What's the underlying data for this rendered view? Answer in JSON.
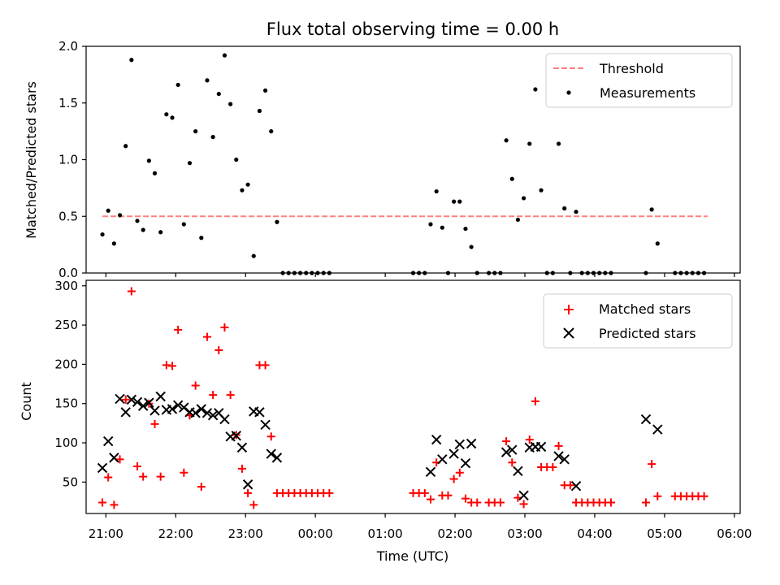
{
  "chart_data": [
    {
      "type": "scatter",
      "title": "Flux total observing time = 0.00 h",
      "ylabel": "Matched/Predicted stars",
      "xlabel": "",
      "xlim": [
        "20:43",
        "06:05"
      ],
      "ylim": [
        0,
        2.0
      ],
      "x_ticks": [
        "21:00",
        "22:00",
        "23:00",
        "00:00",
        "01:00",
        "02:00",
        "03:00",
        "04:00",
        "05:00",
        "06:00"
      ],
      "y_ticks": [
        "0.0",
        "0.5",
        "1.0",
        "1.5",
        "2.0"
      ],
      "legend_position": "top-right",
      "series": [
        {
          "name": "Threshold",
          "style": "dashed-line",
          "color": "#ff7f7f",
          "points": [
            [
              "20:57",
              0.5
            ],
            [
              "05:37",
              0.5
            ]
          ]
        },
        {
          "name": "Measurements",
          "style": "dot",
          "color": "#000000",
          "points": [
            [
              "20:57",
              0.34
            ],
            [
              "21:02",
              0.55
            ],
            [
              "21:07",
              0.26
            ],
            [
              "21:12",
              0.51
            ],
            [
              "21:17",
              1.12
            ],
            [
              "21:22",
              1.88
            ],
            [
              "21:27",
              0.46
            ],
            [
              "21:32",
              0.38
            ],
            [
              "21:37",
              0.99
            ],
            [
              "21:42",
              0.88
            ],
            [
              "21:47",
              0.36
            ],
            [
              "21:52",
              1.4
            ],
            [
              "21:57",
              1.37
            ],
            [
              "22:02",
              1.66
            ],
            [
              "22:07",
              0.43
            ],
            [
              "22:12",
              0.97
            ],
            [
              "22:17",
              1.25
            ],
            [
              "22:22",
              0.31
            ],
            [
              "22:27",
              1.7
            ],
            [
              "22:32",
              1.2
            ],
            [
              "22:37",
              1.58
            ],
            [
              "22:42",
              1.92
            ],
            [
              "22:47",
              1.49
            ],
            [
              "22:52",
              1.0
            ],
            [
              "22:57",
              0.73
            ],
            [
              "23:02",
              0.78
            ],
            [
              "23:07",
              0.15
            ],
            [
              "23:12",
              1.43
            ],
            [
              "23:17",
              1.61
            ],
            [
              "23:22",
              1.25
            ],
            [
              "23:27",
              0.45
            ],
            [
              "23:32",
              0.0
            ],
            [
              "23:37",
              0.0
            ],
            [
              "23:42",
              0.0
            ],
            [
              "23:47",
              0.0
            ],
            [
              "23:52",
              0.0
            ],
            [
              "23:57",
              0.0
            ],
            [
              "00:02",
              0.0
            ],
            [
              "00:07",
              0.0
            ],
            [
              "00:12",
              0.0
            ],
            [
              "01:24",
              0.0
            ],
            [
              "01:29",
              0.0
            ],
            [
              "01:34",
              0.0
            ],
            [
              "01:39",
              0.43
            ],
            [
              "01:44",
              0.72
            ],
            [
              "01:49",
              0.4
            ],
            [
              "01:54",
              0.0
            ],
            [
              "01:59",
              0.63
            ],
            [
              "02:04",
              0.63
            ],
            [
              "02:09",
              0.39
            ],
            [
              "02:14",
              0.23
            ],
            [
              "02:19",
              0.0
            ],
            [
              "02:29",
              0.0
            ],
            [
              "02:34",
              0.0
            ],
            [
              "02:39",
              0.0
            ],
            [
              "02:44",
              1.17
            ],
            [
              "02:49",
              0.83
            ],
            [
              "02:54",
              0.47
            ],
            [
              "02:59",
              0.66
            ],
            [
              "03:04",
              1.14
            ],
            [
              "03:09",
              1.62
            ],
            [
              "03:14",
              0.73
            ],
            [
              "03:19",
              0.0
            ],
            [
              "03:24",
              0.0
            ],
            [
              "03:29",
              1.14
            ],
            [
              "03:34",
              0.57
            ],
            [
              "03:39",
              0.0
            ],
            [
              "03:44",
              0.54
            ],
            [
              "03:49",
              0.0
            ],
            [
              "03:54",
              0.0
            ],
            [
              "03:59",
              0.0
            ],
            [
              "04:04",
              0.0
            ],
            [
              "04:09",
              0.0
            ],
            [
              "04:14",
              0.0
            ],
            [
              "04:44",
              0.0
            ],
            [
              "04:49",
              0.56
            ],
            [
              "04:54",
              0.26
            ],
            [
              "05:09",
              0.0
            ],
            [
              "05:14",
              0.0
            ],
            [
              "05:19",
              0.0
            ],
            [
              "05:24",
              0.0
            ],
            [
              "05:29",
              0.0
            ],
            [
              "05:34",
              0.0
            ]
          ]
        }
      ]
    },
    {
      "type": "scatter",
      "title": "",
      "ylabel": "Count",
      "xlabel": "Time (UTC)",
      "xlim": [
        "20:43",
        "06:05"
      ],
      "ylim": [
        10,
        307
      ],
      "x_ticks": [
        "21:00",
        "22:00",
        "23:00",
        "00:00",
        "01:00",
        "02:00",
        "03:00",
        "04:00",
        "05:00",
        "06:00"
      ],
      "y_ticks": [
        "50",
        "100",
        "150",
        "200",
        "250",
        "300"
      ],
      "legend_position": "top-right",
      "series": [
        {
          "name": "Matched stars",
          "style": "plus",
          "color": "#ff0000",
          "points": [
            [
              "20:57",
              24
            ],
            [
              "21:02",
              56
            ],
            [
              "21:07",
              21
            ],
            [
              "21:12",
              79
            ],
            [
              "21:17",
              155
            ],
            [
              "21:22",
              293
            ],
            [
              "21:27",
              70
            ],
            [
              "21:32",
              57
            ],
            [
              "21:37",
              150
            ],
            [
              "21:42",
              124
            ],
            [
              "21:47",
              57
            ],
            [
              "21:52",
              199
            ],
            [
              "21:57",
              198
            ],
            [
              "22:02",
              244
            ],
            [
              "22:07",
              62
            ],
            [
              "22:12",
              135
            ],
            [
              "22:17",
              173
            ],
            [
              "22:22",
              44
            ],
            [
              "22:27",
              235
            ],
            [
              "22:32",
              161
            ],
            [
              "22:37",
              218
            ],
            [
              "22:42",
              247
            ],
            [
              "22:47",
              161
            ],
            [
              "22:52",
              110
            ],
            [
              "22:57",
              67
            ],
            [
              "23:02",
              36
            ],
            [
              "23:07",
              21
            ],
            [
              "23:12",
              199
            ],
            [
              "23:17",
              199
            ],
            [
              "23:22",
              108
            ],
            [
              "23:27",
              36
            ],
            [
              "23:32",
              36
            ],
            [
              "23:37",
              36
            ],
            [
              "23:42",
              36
            ],
            [
              "23:47",
              36
            ],
            [
              "23:52",
              36
            ],
            [
              "23:57",
              36
            ],
            [
              "00:02",
              36
            ],
            [
              "00:07",
              36
            ],
            [
              "00:12",
              36
            ],
            [
              "01:24",
              36
            ],
            [
              "01:29",
              36
            ],
            [
              "01:34",
              36
            ],
            [
              "01:39",
              28
            ],
            [
              "01:44",
              75
            ],
            [
              "01:49",
              33
            ],
            [
              "01:54",
              33
            ],
            [
              "01:59",
              54
            ],
            [
              "02:04",
              62
            ],
            [
              "02:09",
              29
            ],
            [
              "02:14",
              24
            ],
            [
              "02:19",
              24
            ],
            [
              "02:29",
              24
            ],
            [
              "02:34",
              24
            ],
            [
              "02:39",
              24
            ],
            [
              "02:44",
              102
            ],
            [
              "02:49",
              75
            ],
            [
              "02:54",
              30
            ],
            [
              "02:59",
              22
            ],
            [
              "03:04",
              104
            ],
            [
              "03:09",
              153
            ],
            [
              "03:14",
              69
            ],
            [
              "03:19",
              69
            ],
            [
              "03:24",
              69
            ],
            [
              "03:29",
              96
            ],
            [
              "03:34",
              46
            ],
            [
              "03:39",
              46
            ],
            [
              "03:44",
              24
            ],
            [
              "03:49",
              24
            ],
            [
              "03:54",
              24
            ],
            [
              "03:59",
              24
            ],
            [
              "04:04",
              24
            ],
            [
              "04:09",
              24
            ],
            [
              "04:14",
              24
            ],
            [
              "04:44",
              24
            ],
            [
              "04:49",
              73
            ],
            [
              "04:54",
              32
            ],
            [
              "05:09",
              32
            ],
            [
              "05:14",
              32
            ],
            [
              "05:19",
              32
            ],
            [
              "05:24",
              32
            ],
            [
              "05:29",
              32
            ],
            [
              "05:34",
              32
            ]
          ]
        },
        {
          "name": "Predicted stars",
          "style": "x",
          "color": "#000000",
          "points": [
            [
              "20:57",
              68
            ],
            [
              "21:02",
              102
            ],
            [
              "21:07",
              81
            ],
            [
              "21:12",
              156
            ],
            [
              "21:17",
              139
            ],
            [
              "21:22",
              155
            ],
            [
              "21:27",
              152
            ],
            [
              "21:32",
              147
            ],
            [
              "21:37",
              151
            ],
            [
              "21:42",
              141
            ],
            [
              "21:47",
              159
            ],
            [
              "21:52",
              142
            ],
            [
              "21:57",
              143
            ],
            [
              "22:02",
              148
            ],
            [
              "22:07",
              145
            ],
            [
              "22:12",
              139
            ],
            [
              "22:17",
              138
            ],
            [
              "22:22",
              143
            ],
            [
              "22:27",
              138
            ],
            [
              "22:32",
              135
            ],
            [
              "22:37",
              138
            ],
            [
              "22:42",
              130
            ],
            [
              "22:47",
              108
            ],
            [
              "22:52",
              109
            ],
            [
              "22:57",
              94
            ],
            [
              "23:02",
              47
            ],
            [
              "23:07",
              140
            ],
            [
              "23:12",
              139
            ],
            [
              "23:17",
              123
            ],
            [
              "23:22",
              86
            ],
            [
              "23:27",
              81
            ],
            [
              "01:39",
              63
            ],
            [
              "01:44",
              104
            ],
            [
              "01:49",
              79
            ],
            [
              "01:59",
              86
            ],
            [
              "02:04",
              98
            ],
            [
              "02:09",
              74
            ],
            [
              "02:14",
              99
            ],
            [
              "02:44",
              88
            ],
            [
              "02:49",
              91
            ],
            [
              "02:54",
              64
            ],
            [
              "02:59",
              33
            ],
            [
              "03:04",
              94
            ],
            [
              "03:09",
              95
            ],
            [
              "03:14",
              95
            ],
            [
              "03:29",
              83
            ],
            [
              "03:34",
              79
            ],
            [
              "03:44",
              45
            ],
            [
              "04:44",
              130
            ],
            [
              "04:54",
              117
            ]
          ]
        }
      ]
    }
  ]
}
